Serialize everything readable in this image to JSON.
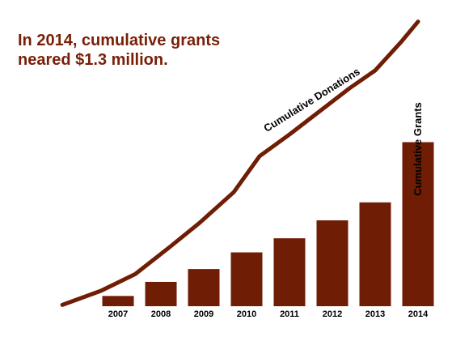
{
  "colors": {
    "bar": "#6f1d04",
    "line": "#6f1d04",
    "title": "#7a1f07",
    "text": "#000000"
  },
  "chart_data": {
    "type": "bar",
    "title_lines": [
      "In 2014, cumulative grants",
      "neared $1.3 million."
    ],
    "categories": [
      "2007",
      "2008",
      "2009",
      "2010",
      "2011",
      "2012",
      "2013",
      "2014"
    ],
    "series": [
      {
        "name": "Cumulative Grants",
        "type": "bar",
        "values": [
          0.08,
          0.19,
          0.29,
          0.42,
          0.53,
          0.67,
          0.81,
          1.28
        ]
      },
      {
        "name": "Cumulative Donations",
        "type": "line",
        "x": [
          2005.7,
          2006.6,
          2007.4,
          2008.2,
          2008.9,
          2009.7,
          2010.3,
          2011.0,
          2011.7,
          2012.4,
          2013.0,
          2013.6,
          2014.0
        ],
        "values": [
          0.01,
          0.12,
          0.25,
          0.46,
          0.65,
          0.89,
          1.17,
          1.34,
          1.52,
          1.7,
          1.84,
          2.06,
          2.22
        ]
      }
    ],
    "ylim": [
      0,
      2.25
    ],
    "grid": false,
    "legend": "none"
  }
}
